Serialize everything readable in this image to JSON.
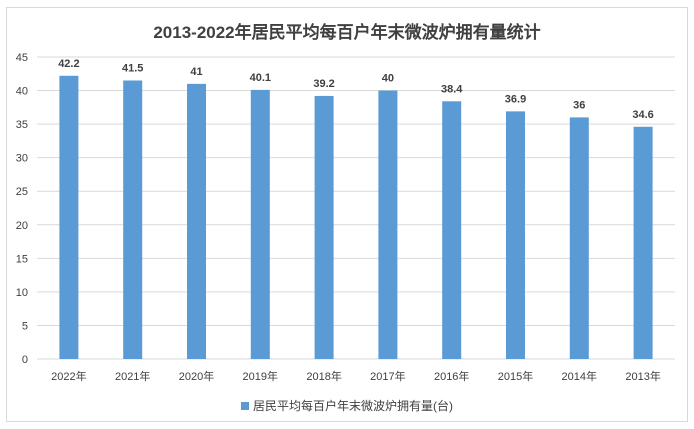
{
  "chart_data": {
    "type": "bar",
    "title": "2013-2022年居民平均每百户年末微波炉拥有量统计",
    "categories": [
      "2022年",
      "2021年",
      "2020年",
      "2019年",
      "2018年",
      "2017年",
      "2016年",
      "2015年",
      "2014年",
      "2013年"
    ],
    "series": [
      {
        "name": "居民平均每百户年末微波炉拥有量(台)",
        "values": [
          42.2,
          41.5,
          41,
          40.1,
          39.2,
          40,
          38.4,
          36.9,
          36,
          34.6
        ]
      }
    ],
    "ylim": [
      0,
      45
    ],
    "yticks": [
      0,
      5,
      10,
      15,
      20,
      25,
      30,
      35,
      40,
      45
    ],
    "grid": true,
    "legend": "bottom",
    "bar_color": "#5b9bd5"
  }
}
